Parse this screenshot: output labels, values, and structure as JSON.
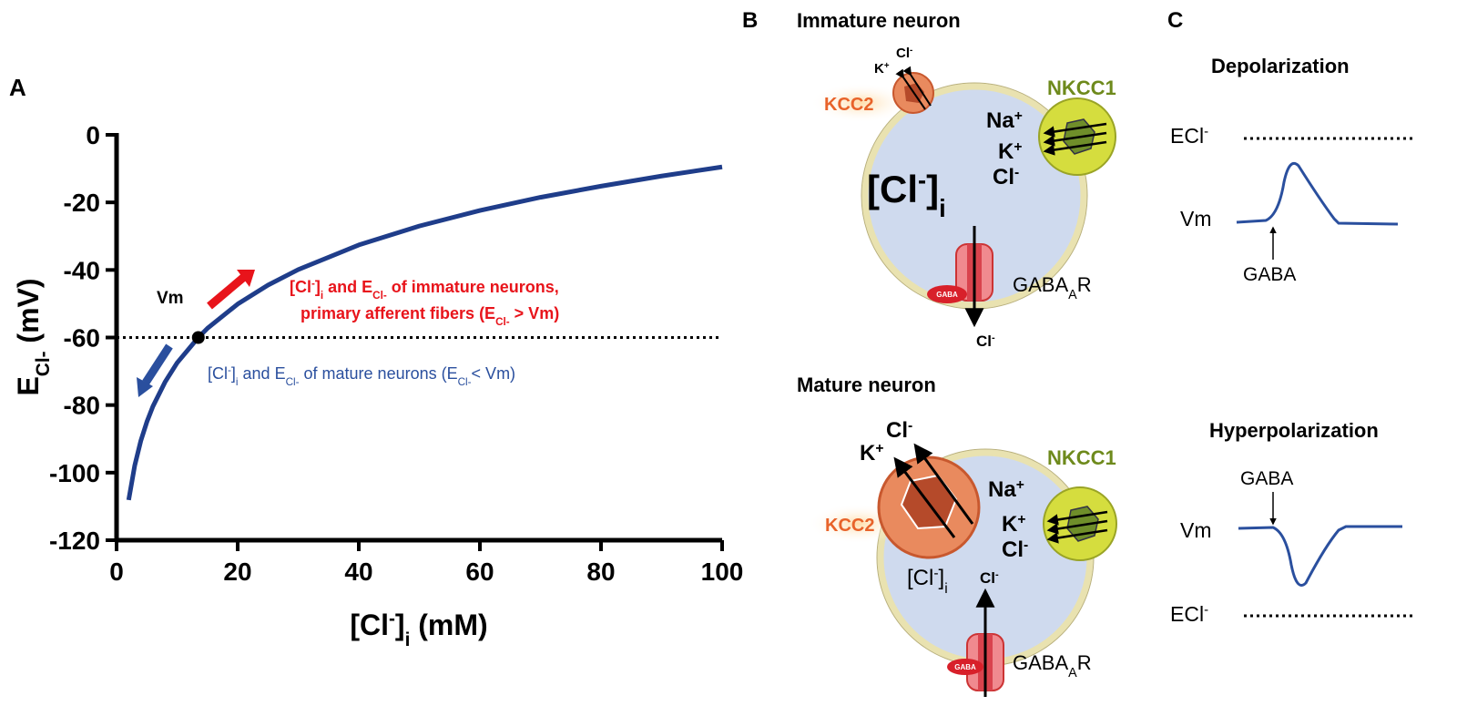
{
  "panel_labels": [
    "A",
    "B",
    "C"
  ],
  "chart_data": {
    "type": "line",
    "x": [
      2,
      3,
      4,
      5,
      6,
      8,
      10,
      13.5,
      15,
      20,
      25,
      30,
      40,
      50,
      60,
      70,
      80,
      90,
      100
    ],
    "series": [
      {
        "color": "#1f3d8a",
        "values": [
          -108.1,
          -97.9,
          -90.6,
          -85.0,
          -80.4,
          -73.2,
          -67.5,
          -60.0,
          -57.3,
          -50.1,
          -44.5,
          -39.9,
          -32.6,
          -27.0,
          -22.4,
          -18.5,
          -15.2,
          -12.2,
          -9.5
        ]
      }
    ],
    "xlim": [
      0,
      100
    ],
    "ylim": [
      -120,
      0
    ],
    "xticks": [
      0,
      20,
      40,
      60,
      80,
      100
    ],
    "yticks": [
      0,
      -20,
      -40,
      -60,
      -80,
      -100,
      -120
    ],
    "x_label": [
      "[Cl",
      "-",
      "]",
      "i",
      " (mM)"
    ],
    "y_label": [
      "E",
      "Cl-",
      " (mV)"
    ],
    "reference_line": -60,
    "vm_point": {
      "x": 13.5,
      "y": -60,
      "label": "Vm"
    },
    "annotations": [
      {
        "color": "#e8141b",
        "lines": [
          [
            "[Cl",
            "-",
            "]",
            "i",
            " and E",
            "Cl-",
            "  of immature neurons,"
          ],
          [
            "primary afferent fibers (E",
            "Cl-",
            " > Vm)"
          ]
        ]
      },
      {
        "color": "#2a4f9e",
        "lines": [
          [
            "[Cl",
            "-",
            "]",
            "i",
            " and E",
            "Cl-",
            "  of mature neurons (E",
            "Cl-",
            "< Vm)"
          ]
        ]
      }
    ]
  },
  "panel_b": {
    "immature": {
      "title": "Immature neuron",
      "kcc2": "KCC2",
      "nkcc1": "NKCC1",
      "kcc2_ions": [
        "K",
        "+",
        "Cl",
        "-"
      ],
      "nkcc1_ions": [
        [
          "Na",
          "+"
        ],
        [
          "K",
          "+"
        ],
        [
          "Cl",
          "-"
        ]
      ],
      "cl_inside": [
        "[Cl",
        "-",
        "]",
        "i"
      ],
      "receptor": [
        "GABA",
        "A",
        "R"
      ],
      "gaba": "GABA",
      "flux": [
        "Cl",
        "-"
      ]
    },
    "mature": {
      "title": "Mature neuron",
      "kcc2": "KCC2",
      "nkcc1": "NKCC1",
      "kcc2_ions": [
        "K",
        "+",
        "Cl",
        "-"
      ],
      "nkcc1_ions": [
        [
          "Na",
          "+"
        ],
        [
          "K",
          "+"
        ],
        [
          "Cl",
          "-"
        ]
      ],
      "cl_inside": [
        "[Cl",
        "-",
        "]",
        "i"
      ],
      "receptor": [
        "GABA",
        "A",
        "R"
      ],
      "gaba": "GABA",
      "flux": [
        "Cl",
        "-"
      ]
    }
  },
  "panel_c": {
    "depolarization": {
      "title": "Depolarization",
      "ecl": [
        "ECl",
        "-"
      ],
      "vm": "Vm",
      "gaba": "GABA"
    },
    "hyperpolarization": {
      "title": "Hyperpolarization",
      "ecl": [
        "ECl",
        "-"
      ],
      "vm": "Vm",
      "gaba": "GABA"
    }
  }
}
